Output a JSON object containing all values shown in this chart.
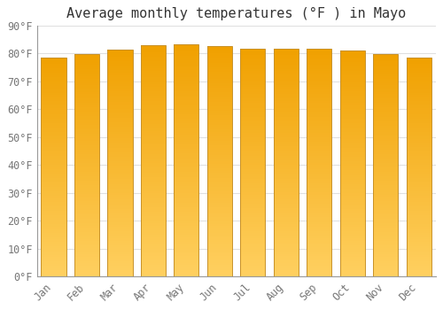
{
  "title": "Average monthly temperatures (°F ) in Mayo",
  "months": [
    "Jan",
    "Feb",
    "Mar",
    "Apr",
    "May",
    "Jun",
    "Jul",
    "Aug",
    "Sep",
    "Oct",
    "Nov",
    "Dec"
  ],
  "values": [
    78.5,
    79.8,
    81.2,
    83.0,
    83.2,
    82.5,
    81.8,
    81.8,
    81.8,
    81.0,
    79.7,
    78.5
  ],
  "bar_color_top": "#F5A800",
  "bar_color_bottom": "#FFD060",
  "bar_edge_color": "#C8922A",
  "background_color": "#FFFFFF",
  "grid_color": "#E0E0E0",
  "text_color": "#777777",
  "title_color": "#333333",
  "ylim": [
    0,
    90
  ],
  "yticks": [
    0,
    10,
    20,
    30,
    40,
    50,
    60,
    70,
    80,
    90
  ],
  "bar_width": 0.75,
  "title_fontsize": 11,
  "tick_fontsize": 8.5
}
